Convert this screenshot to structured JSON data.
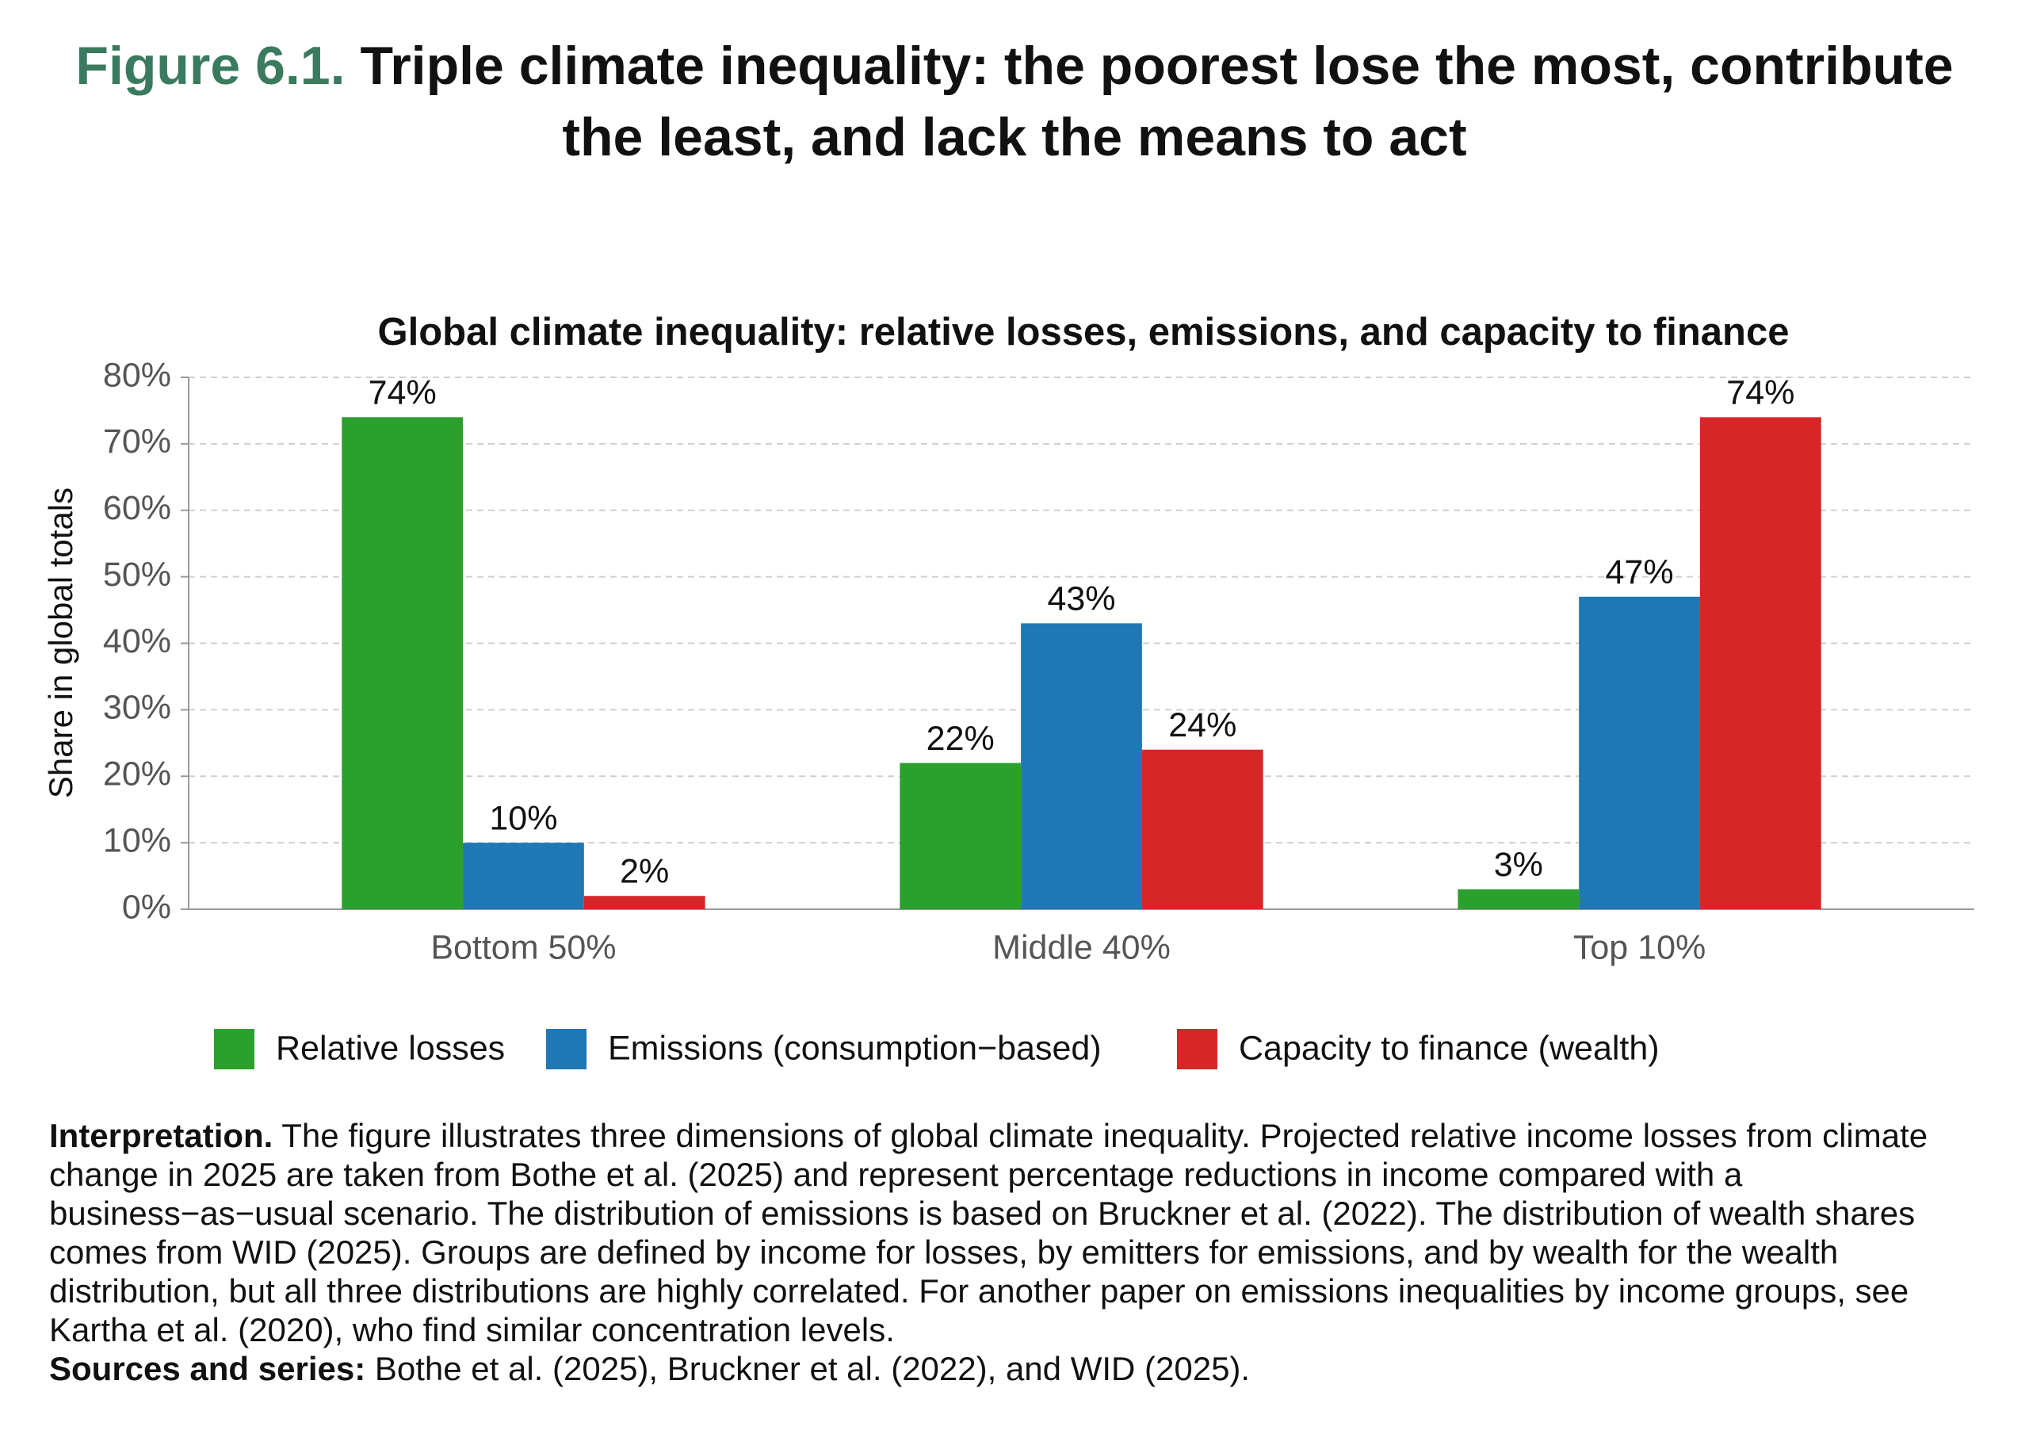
{
  "figure_label": "Figure 6.1.",
  "figure_title": "Triple climate inequality: the poorest lose the most, contribute the least, and lack the means to act",
  "chart_data": {
    "type": "bar",
    "title": "Global climate inequality: relative losses, emissions, and capacity to finance",
    "y_label": "Share in global totals",
    "categories": [
      "Bottom 50%",
      "Middle 40%",
      "Top 10%"
    ],
    "series": [
      {
        "name": "Relative losses",
        "color": "#2ca02c",
        "values": [
          74,
          22,
          3
        ],
        "value_labels": [
          "74%",
          "22%",
          "3%"
        ]
      },
      {
        "name": "Emissions (consumption−based)",
        "color": "#1f77b4",
        "values": [
          10,
          43,
          47
        ],
        "value_labels": [
          "10%",
          "43%",
          "47%"
        ]
      },
      {
        "name": "Capacity to finance (wealth)",
        "color": "#d62728",
        "values": [
          2,
          24,
          74
        ],
        "value_labels": [
          "2%",
          "24%",
          "74%"
        ]
      }
    ],
    "ylim": [
      0,
      80
    ],
    "yticks": [
      {
        "value": 0,
        "label": "0%"
      },
      {
        "value": 10,
        "label": "10%"
      },
      {
        "value": 20,
        "label": "20%"
      },
      {
        "value": 30,
        "label": "30%"
      },
      {
        "value": 40,
        "label": "40%"
      },
      {
        "value": 50,
        "label": "50%"
      },
      {
        "value": 60,
        "label": "60%"
      },
      {
        "value": 70,
        "label": "70%"
      },
      {
        "value": 80,
        "label": "80%"
      }
    ],
    "grid": true,
    "legend": "bottom"
  },
  "notes": {
    "interpretation_label": "Interpretation.",
    "interpretation": "The figure illustrates three dimensions of global climate inequality. Projected relative income losses from climate change in 2025 are taken from Bothe et al. (2025) and represent percentage reductions in income compared with a business−as−usual scenario. The distribution of emissions is based on Bruckner et al. (2022). The distribution of wealth shares comes from WID (2025). Groups are defined by income for losses, by emitters for emissions, and by wealth for the wealth distribution, but all three distributions are highly correlated. For another paper on emissions inequalities by income groups, see Kartha et al. (2020), who find similar concentration levels.",
    "sources_label": "Sources and series:",
    "sources": "Bothe et al. (2025), Bruckner et al. (2022), and WID (2025)."
  }
}
